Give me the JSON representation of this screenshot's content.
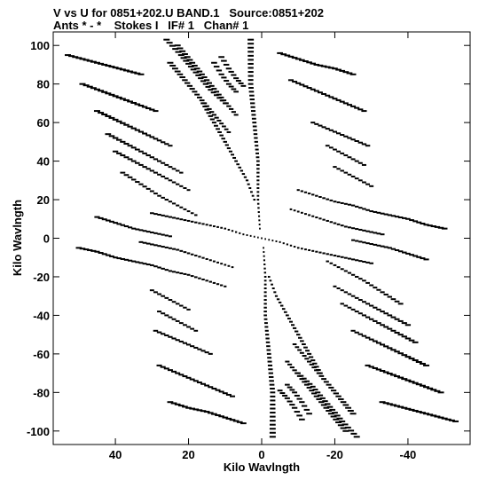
{
  "header": {
    "line1": "V vs U for 0851+202.U BAND.1   Source:0851+202",
    "line2": "Ants * - *    Stokes I   IF# 1   Chan# 1"
  },
  "chart_data": {
    "type": "scatter",
    "title": "V vs U for 0851+202.U BAND.1   Source:0851+202",
    "subtitle": "Ants * - *    Stokes I   IF# 1   Chan# 1",
    "xlabel": "Kilo Wavlngth",
    "ylabel": "Kilo Wavlngth",
    "xlim": [
      57,
      -57
    ],
    "ylim": [
      -107,
      107
    ],
    "x_reversed": true,
    "x_ticks": [
      40,
      20,
      0,
      -20,
      -40
    ],
    "x_tick_labels": [
      "40",
      "20",
      "0",
      "-20",
      "-40"
    ],
    "y_ticks": [
      100,
      80,
      60,
      40,
      20,
      0,
      -20,
      -40,
      -60,
      -80,
      -100
    ],
    "y_tick_labels": [
      "100",
      "80",
      "60",
      "40",
      "20",
      "0",
      "-20",
      "-40",
      "-60",
      "-80",
      "-100"
    ],
    "grid": false,
    "legend": "none",
    "marker": "dash",
    "color": "#000000",
    "tracks": [
      {
        "points": [
          [
            53,
            95
          ],
          [
            48,
            92.5
          ],
          [
            43,
            90
          ],
          [
            38,
            87.5
          ],
          [
            33,
            85
          ]
        ]
      },
      {
        "points": [
          [
            49,
            80
          ],
          [
            44,
            76.5
          ],
          [
            39,
            73
          ],
          [
            34,
            69.5
          ],
          [
            29,
            66
          ]
        ]
      },
      {
        "points": [
          [
            45,
            66
          ],
          [
            40,
            61.5
          ],
          [
            35,
            57
          ],
          [
            30,
            52.5
          ],
          [
            25,
            48
          ]
        ]
      },
      {
        "points": [
          [
            42,
            54
          ],
          [
            37,
            49
          ],
          [
            32,
            44
          ],
          [
            27,
            39
          ],
          [
            22,
            34
          ]
        ]
      },
      {
        "points": [
          [
            40,
            45
          ],
          [
            35,
            40
          ],
          [
            30,
            35
          ],
          [
            25,
            30
          ],
          [
            20,
            25
          ]
        ]
      },
      {
        "points": [
          [
            38,
            34
          ],
          [
            33,
            28
          ],
          [
            28,
            22
          ],
          [
            23,
            17
          ],
          [
            18,
            12
          ]
        ]
      },
      {
        "points": [
          [
            45,
            11
          ],
          [
            40,
            8
          ],
          [
            35,
            5
          ],
          [
            30,
            3
          ],
          [
            25,
            1
          ]
        ]
      },
      {
        "points": [
          [
            26,
            103
          ],
          [
            22,
            95
          ],
          [
            18,
            86
          ],
          [
            14,
            77
          ],
          [
            10,
            70
          ]
        ]
      },
      {
        "points": [
          [
            23,
            100
          ],
          [
            19,
            91
          ],
          [
            15,
            82
          ],
          [
            11,
            73
          ],
          [
            7,
            64
          ]
        ]
      },
      {
        "points": [
          [
            25,
            91
          ],
          [
            21,
            82
          ],
          [
            17,
            73
          ],
          [
            13,
            64
          ],
          [
            9,
            55
          ]
        ]
      },
      {
        "points": [
          [
            16,
            70
          ],
          [
            13,
            60
          ],
          [
            10,
            50
          ],
          [
            7,
            40
          ],
          [
            4,
            30
          ],
          [
            2,
            20
          ]
        ]
      },
      {
        "points": [
          [
            13,
            91
          ],
          [
            11,
            85
          ],
          [
            9,
            80
          ],
          [
            7,
            76
          ]
        ]
      },
      {
        "points": [
          [
            11,
            94
          ],
          [
            9,
            88
          ],
          [
            7,
            83
          ],
          [
            5,
            79
          ]
        ]
      },
      {
        "points": [
          [
            3,
            103
          ],
          [
            3,
            80
          ],
          [
            2,
            60
          ],
          [
            1,
            40
          ],
          [
            1,
            20
          ],
          [
            0.5,
            5
          ]
        ]
      },
      {
        "points": [
          [
            -5,
            96
          ],
          [
            -10,
            93
          ],
          [
            -15,
            90
          ],
          [
            -20,
            88
          ],
          [
            -25,
            85
          ]
        ]
      },
      {
        "points": [
          [
            -8,
            82
          ],
          [
            -13,
            78
          ],
          [
            -18,
            74
          ],
          [
            -23,
            70
          ],
          [
            -28,
            66
          ]
        ]
      },
      {
        "points": [
          [
            -14,
            60
          ],
          [
            -19,
            56
          ],
          [
            -24,
            52
          ],
          [
            -29,
            48
          ]
        ]
      },
      {
        "points": [
          [
            -18,
            48
          ],
          [
            -23,
            43
          ],
          [
            -28,
            38
          ]
        ]
      },
      {
        "points": [
          [
            -20,
            37
          ],
          [
            -25,
            32
          ],
          [
            -30,
            27
          ]
        ]
      },
      {
        "points": [
          [
            -10,
            25
          ],
          [
            -15,
            22
          ],
          [
            -20,
            19
          ],
          [
            -25,
            17
          ],
          [
            -30,
            14
          ],
          [
            -35,
            12
          ],
          [
            -40,
            10
          ],
          [
            -45,
            7
          ],
          [
            -50,
            5
          ]
        ]
      },
      {
        "points": [
          [
            -8,
            15
          ],
          [
            -13,
            12
          ],
          [
            -18,
            9
          ],
          [
            -23,
            6
          ],
          [
            -28,
            4
          ],
          [
            -33,
            2
          ]
        ]
      },
      {
        "points": [
          [
            0,
            0
          ],
          [
            -5,
            -2
          ],
          [
            -10,
            -5
          ],
          [
            -15,
            -7
          ],
          [
            -20,
            -9
          ],
          [
            -25,
            -11
          ],
          [
            -30,
            -13
          ]
        ]
      },
      {
        "points": [
          [
            -53,
            -95
          ],
          [
            -48,
            -92.5
          ],
          [
            -43,
            -90
          ],
          [
            -38,
            -87.5
          ],
          [
            -33,
            -85
          ]
        ]
      },
      {
        "points": [
          [
            -49,
            -80
          ],
          [
            -44,
            -76.5
          ],
          [
            -39,
            -73
          ],
          [
            -34,
            -69.5
          ],
          [
            -29,
            -66
          ]
        ]
      },
      {
        "points": [
          [
            -45,
            -66
          ],
          [
            -40,
            -61.5
          ],
          [
            -35,
            -57
          ],
          [
            -30,
            -52.5
          ],
          [
            -25,
            -48
          ]
        ]
      },
      {
        "points": [
          [
            -42,
            -54
          ],
          [
            -37,
            -49
          ],
          [
            -32,
            -44
          ],
          [
            -27,
            -39
          ],
          [
            -22,
            -34
          ]
        ]
      },
      {
        "points": [
          [
            -40,
            -45
          ],
          [
            -35,
            -40
          ],
          [
            -30,
            -35
          ],
          [
            -25,
            -30
          ],
          [
            -20,
            -25
          ]
        ]
      },
      {
        "points": [
          [
            -38,
            -34
          ],
          [
            -33,
            -28
          ],
          [
            -28,
            -22
          ],
          [
            -23,
            -17
          ],
          [
            -18,
            -12
          ]
        ]
      },
      {
        "points": [
          [
            -45,
            -11
          ],
          [
            -40,
            -8
          ],
          [
            -35,
            -5
          ],
          [
            -30,
            -3
          ],
          [
            -25,
            -1
          ]
        ]
      },
      {
        "points": [
          [
            -26,
            -103
          ],
          [
            -22,
            -95
          ],
          [
            -18,
            -86
          ],
          [
            -14,
            -77
          ],
          [
            -10,
            -70
          ]
        ]
      },
      {
        "points": [
          [
            -23,
            -100
          ],
          [
            -19,
            -91
          ],
          [
            -15,
            -82
          ],
          [
            -11,
            -73
          ],
          [
            -7,
            -64
          ]
        ]
      },
      {
        "points": [
          [
            -25,
            -91
          ],
          [
            -21,
            -82
          ],
          [
            -17,
            -73
          ],
          [
            -13,
            -64
          ],
          [
            -9,
            -55
          ]
        ]
      },
      {
        "points": [
          [
            -16,
            -70
          ],
          [
            -13,
            -60
          ],
          [
            -10,
            -50
          ],
          [
            -7,
            -40
          ],
          [
            -4,
            -30
          ],
          [
            -2,
            -20
          ]
        ]
      },
      {
        "points": [
          [
            -13,
            -91
          ],
          [
            -11,
            -85
          ],
          [
            -9,
            -80
          ],
          [
            -7,
            -76
          ]
        ]
      },
      {
        "points": [
          [
            -11,
            -94
          ],
          [
            -9,
            -88
          ],
          [
            -7,
            -83
          ],
          [
            -5,
            -79
          ]
        ]
      },
      {
        "points": [
          [
            -3,
            -103
          ],
          [
            -3,
            -80
          ],
          [
            -2,
            -60
          ],
          [
            -1,
            -40
          ],
          [
            -1,
            -20
          ],
          [
            -0.5,
            -5
          ]
        ]
      },
      {
        "points": [
          [
            5,
            -96
          ],
          [
            10,
            -93
          ],
          [
            15,
            -90
          ],
          [
            20,
            -88
          ],
          [
            25,
            -85
          ]
        ]
      },
      {
        "points": [
          [
            8,
            -82
          ],
          [
            13,
            -78
          ],
          [
            18,
            -74
          ],
          [
            23,
            -70
          ],
          [
            28,
            -66
          ]
        ]
      },
      {
        "points": [
          [
            14,
            -60
          ],
          [
            19,
            -56
          ],
          [
            24,
            -52
          ],
          [
            29,
            -48
          ]
        ]
      },
      {
        "points": [
          [
            18,
            -48
          ],
          [
            23,
            -43
          ],
          [
            28,
            -38
          ]
        ]
      },
      {
        "points": [
          [
            20,
            -37
          ],
          [
            25,
            -32
          ],
          [
            30,
            -27
          ]
        ]
      },
      {
        "points": [
          [
            10,
            -25
          ],
          [
            15,
            -22
          ],
          [
            20,
            -19
          ],
          [
            25,
            -17
          ],
          [
            30,
            -14
          ],
          [
            35,
            -12
          ],
          [
            40,
            -10
          ],
          [
            45,
            -7
          ],
          [
            50,
            -5
          ]
        ]
      },
      {
        "points": [
          [
            8,
            -15
          ],
          [
            13,
            -12
          ],
          [
            18,
            -9
          ],
          [
            23,
            -6
          ],
          [
            28,
            -4
          ],
          [
            33,
            -2
          ]
        ]
      },
      {
        "points": [
          [
            0,
            0
          ],
          [
            5,
            2
          ],
          [
            10,
            5
          ],
          [
            15,
            7
          ],
          [
            20,
            9
          ],
          [
            25,
            11
          ],
          [
            30,
            13
          ]
        ]
      }
    ]
  }
}
